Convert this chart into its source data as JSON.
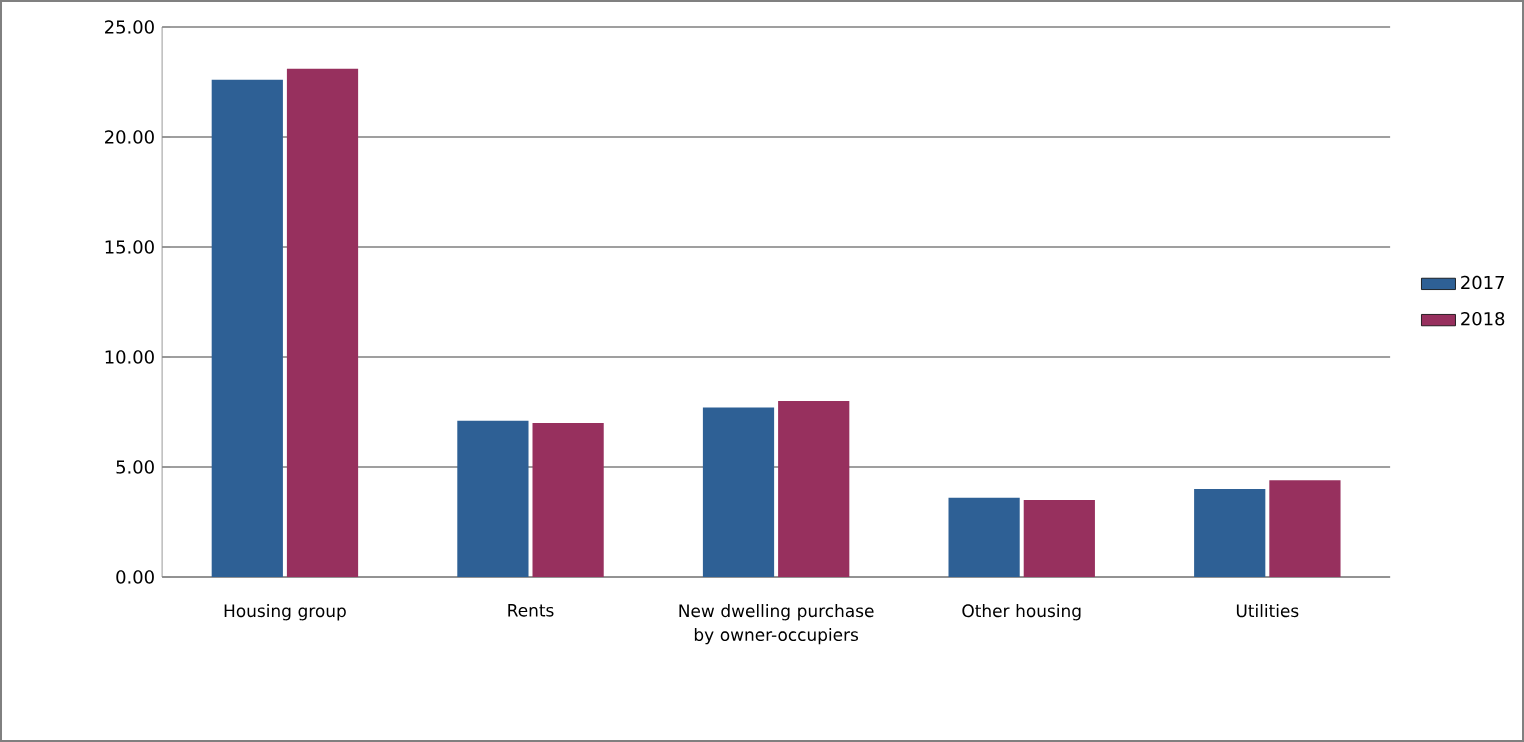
{
  "chart_data": {
    "type": "bar",
    "categories": [
      "Housing group",
      "Rents",
      "New dwelling purchase by owner-occupiers",
      "Other housing",
      "Utilities"
    ],
    "series": [
      {
        "name": "2017",
        "color": "#2e6095",
        "values": [
          22.6,
          7.1,
          7.7,
          3.6,
          4.0
        ]
      },
      {
        "name": "2018",
        "color": "#97305e",
        "values": [
          23.1,
          7.0,
          8.0,
          3.5,
          4.4
        ]
      }
    ],
    "ylim": [
      0,
      25
    ],
    "yticks": [
      {
        "value": 0,
        "label": "0.00"
      },
      {
        "value": 5,
        "label": "5.00"
      },
      {
        "value": 10,
        "label": "10.00"
      },
      {
        "value": 15,
        "label": "15.00"
      },
      {
        "value": 20,
        "label": "20.00"
      },
      {
        "value": 25,
        "label": "25.00"
      }
    ],
    "grid": "y",
    "legend": "right"
  }
}
